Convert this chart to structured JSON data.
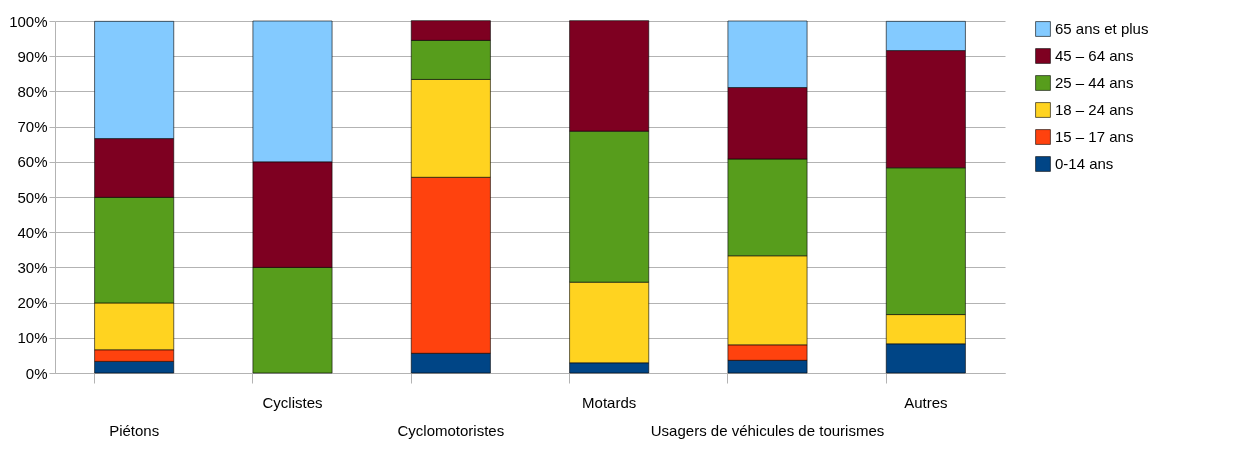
{
  "chart_data": {
    "type": "bar",
    "stacked": true,
    "categories": [
      "Piétons",
      "Cyclistes",
      "Cyclomotoristes",
      "Motards",
      "Usagers de véhicules de tourismes",
      "Autres"
    ],
    "series": [
      {
        "name": "0-14 ans",
        "color": "#004586",
        "values": [
          3.3,
          null,
          5.6,
          2.9,
          3.6,
          8.3
        ]
      },
      {
        "name": "15 – 17 ans",
        "color": "#ff420e",
        "values": [
          3.3,
          null,
          50,
          null,
          4.4,
          null
        ]
      },
      {
        "name": "18 – 24 ans",
        "color": "#ffd320",
        "values": [
          13.3,
          null,
          27.8,
          22.9,
          25.3,
          8.3
        ]
      },
      {
        "name": "25 – 44 ans",
        "color": "#579d1c",
        "values": [
          30,
          30,
          11.1,
          42.9,
          27.5,
          41.7
        ]
      },
      {
        "name": "45 – 64 ans",
        "color": "#7e0021",
        "values": [
          16.7,
          30,
          5.6,
          31.4,
          20.3,
          33.3
        ]
      },
      {
        "name": "65 ans et plus",
        "color": "#83caff",
        "values": [
          33.3,
          40,
          null,
          null,
          18.9,
          8.3
        ]
      }
    ],
    "ylim": [
      0,
      100
    ],
    "yticks": [
      {
        "value": 0,
        "label": "0%"
      },
      {
        "value": 10,
        "label": "10%"
      },
      {
        "value": 20,
        "label": "20%"
      },
      {
        "value": 30,
        "label": "30%"
      },
      {
        "value": 40,
        "label": "40%"
      },
      {
        "value": 50,
        "label": "50%"
      },
      {
        "value": 60,
        "label": "60%"
      },
      {
        "value": 70,
        "label": "70%"
      },
      {
        "value": 80,
        "label": "80%"
      },
      {
        "value": 90,
        "label": "90%"
      },
      {
        "value": 100,
        "label": "100%"
      }
    ],
    "grid": "y",
    "legend": "right"
  }
}
